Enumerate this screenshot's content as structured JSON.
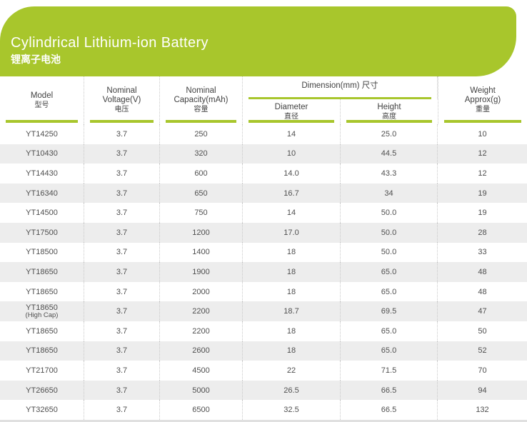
{
  "banner": {
    "title": "Cylindrical Lithium-ion Battery",
    "subtitle": "锂离子电池"
  },
  "colors": {
    "green": "#a8c62c",
    "row_alt": "#ededed",
    "text": "#4f4f4f"
  },
  "header": {
    "model": {
      "line1": "Model",
      "line2": "型号"
    },
    "voltage": {
      "line1": "Nominal",
      "line2": "Voltage(V)",
      "line3": "电压"
    },
    "capacity": {
      "line1": "Nominal",
      "line2": "Capacity(mAh)",
      "line3": "容量"
    },
    "dimension": {
      "label": "Dimension(mm) 尺寸"
    },
    "diameter": {
      "line1": "Diameter",
      "line2": "直径"
    },
    "height": {
      "line1": "Height",
      "line2": "高度"
    },
    "weight": {
      "line1": "Weight",
      "line2": "Approx(g)",
      "line3": "重量"
    }
  },
  "rows": [
    {
      "model": "YT14250",
      "voltage": "3.7",
      "capacity": "250",
      "diameter": "14",
      "height": "25.0",
      "weight": "10"
    },
    {
      "model": "YT10430",
      "voltage": "3.7",
      "capacity": "320",
      "diameter": "10",
      "height": "44.5",
      "weight": "12"
    },
    {
      "model": "YT14430",
      "voltage": "3.7",
      "capacity": "600",
      "diameter": "14.0",
      "height": "43.3",
      "weight": "12"
    },
    {
      "model": "YT16340",
      "voltage": "3.7",
      "capacity": "650",
      "diameter": "16.7",
      "height": "34",
      "weight": "19"
    },
    {
      "model": "YT14500",
      "voltage": "3.7",
      "capacity": "750",
      "diameter": "14",
      "height": "50.0",
      "weight": "19"
    },
    {
      "model": "YT17500",
      "voltage": "3.7",
      "capacity": "1200",
      "diameter": "17.0",
      "height": "50.0",
      "weight": "28"
    },
    {
      "model": "YT18500",
      "voltage": "3.7",
      "capacity": "1400",
      "diameter": "18",
      "height": "50.0",
      "weight": "33"
    },
    {
      "model": "YT18650",
      "voltage": "3.7",
      "capacity": "1900",
      "diameter": "18",
      "height": "65.0",
      "weight": "48"
    },
    {
      "model": "YT18650",
      "voltage": "3.7",
      "capacity": "2000",
      "diameter": "18",
      "height": "65.0",
      "weight": "48"
    },
    {
      "model": "YT18650",
      "note": "(High Cap)",
      "voltage": "3.7",
      "capacity": "2200",
      "diameter": "18.7",
      "height": "69.5",
      "weight": "47"
    },
    {
      "model": "YT18650",
      "voltage": "3.7",
      "capacity": "2200",
      "diameter": "18",
      "height": "65.0",
      "weight": "50"
    },
    {
      "model": "YT18650",
      "voltage": "3.7",
      "capacity": "2600",
      "diameter": "18",
      "height": "65.0",
      "weight": "52"
    },
    {
      "model": "YT21700",
      "voltage": "3.7",
      "capacity": "4500",
      "diameter": "22",
      "height": "71.5",
      "weight": "70"
    },
    {
      "model": "YT26650",
      "voltage": "3.7",
      "capacity": "5000",
      "diameter": "26.5",
      "height": "66.5",
      "weight": "94"
    },
    {
      "model": "YT32650",
      "voltage": "3.7",
      "capacity": "6500",
      "diameter": "32.5",
      "height": "66.5",
      "weight": "132"
    }
  ]
}
